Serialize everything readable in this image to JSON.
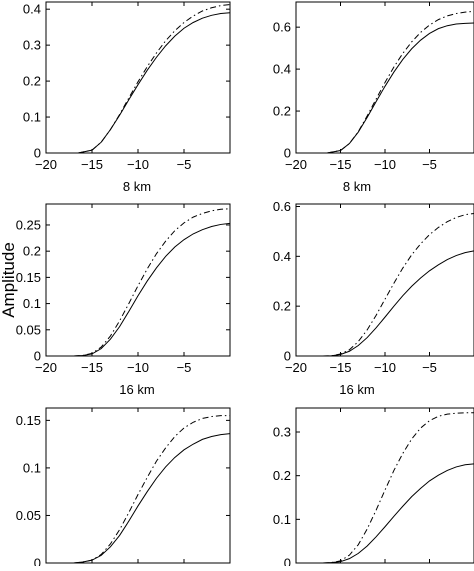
{
  "figure": {
    "ylabel": "Amplitude"
  },
  "chart_data": [
    {
      "type": "line",
      "panel": "top-left",
      "title": "",
      "xlabel": "8 km",
      "ylabel": "",
      "xlim": [
        -20,
        0
      ],
      "ylim": [
        0,
        0.42
      ],
      "xticks": [
        -20,
        -15,
        -10,
        -5
      ],
      "yticks": [
        0,
        0.1,
        0.2,
        0.3,
        0.4
      ],
      "xtick_labels": [
        "−20",
        "−15",
        "−10",
        "−5"
      ],
      "ytick_labels": [
        "0",
        "0.1",
        "0.2",
        "0.3",
        "0.4"
      ],
      "grid": false,
      "series": [
        {
          "style": "solid",
          "x": [
            -16.5,
            -15,
            -14,
            -13,
            -12,
            -11,
            -10,
            -9,
            -8,
            -7,
            -6,
            -5,
            -4,
            -3,
            -2,
            -1,
            0
          ],
          "values": [
            0,
            0.008,
            0.03,
            0.065,
            0.105,
            0.148,
            0.19,
            0.23,
            0.266,
            0.298,
            0.325,
            0.347,
            0.363,
            0.375,
            0.383,
            0.388,
            0.39
          ]
        },
        {
          "style": "dash-dot",
          "x": [
            -16.5,
            -15,
            -14,
            -13,
            -12,
            -11,
            -10,
            -9,
            -8,
            -7,
            -6,
            -5,
            -4,
            -3,
            -2,
            -1,
            0
          ],
          "values": [
            0,
            0.008,
            0.03,
            0.065,
            0.107,
            0.153,
            0.198,
            0.24,
            0.278,
            0.312,
            0.34,
            0.363,
            0.381,
            0.395,
            0.404,
            0.41,
            0.413
          ]
        }
      ]
    },
    {
      "type": "line",
      "panel": "top-right",
      "title": "",
      "xlabel": "8 km",
      "ylabel": "",
      "xlim": [
        -20,
        0
      ],
      "ylim": [
        0,
        0.72
      ],
      "xticks": [
        -20,
        -15,
        -10,
        -5
      ],
      "yticks": [
        0,
        0.2,
        0.4,
        0.6
      ],
      "xtick_labels": [
        "−20",
        "−15",
        "−10",
        "−5"
      ],
      "ytick_labels": [
        "0",
        "0.2",
        "0.4",
        "0.6"
      ],
      "grid": false,
      "series": [
        {
          "style": "solid",
          "x": [
            -16.5,
            -15,
            -14,
            -13,
            -12,
            -11,
            -10,
            -9,
            -8,
            -7,
            -6,
            -5,
            -4,
            -3,
            -2,
            -1,
            0
          ],
          "values": [
            0,
            0.012,
            0.045,
            0.1,
            0.17,
            0.245,
            0.318,
            0.386,
            0.446,
            0.497,
            0.538,
            0.57,
            0.593,
            0.607,
            0.615,
            0.618,
            0.62
          ]
        },
        {
          "style": "dash-dot",
          "x": [
            -16.5,
            -15,
            -14,
            -13,
            -12,
            -11,
            -10,
            -9,
            -8,
            -7,
            -6,
            -5,
            -4,
            -3,
            -2,
            -1,
            0
          ],
          "values": [
            0,
            0.012,
            0.045,
            0.102,
            0.177,
            0.257,
            0.336,
            0.41,
            0.475,
            0.53,
            0.575,
            0.61,
            0.636,
            0.654,
            0.665,
            0.672,
            0.675
          ]
        }
      ]
    },
    {
      "type": "line",
      "panel": "middle-left",
      "title": "",
      "xlabel": "16 km",
      "ylabel": "",
      "xlim": [
        -20,
        0
      ],
      "ylim": [
        0,
        0.29
      ],
      "xticks": [
        -20,
        -15,
        -10,
        -5
      ],
      "yticks": [
        0,
        0.05,
        0.1,
        0.15,
        0.2,
        0.25
      ],
      "xtick_labels": [
        "−20",
        "−15",
        "−10",
        "−5"
      ],
      "ytick_labels": [
        "0",
        "0.05",
        "0.1",
        "0.15",
        "0.2",
        "0.25"
      ],
      "grid": false,
      "series": [
        {
          "style": "solid",
          "x": [
            -17,
            -16,
            -15,
            -14,
            -13,
            -12,
            -11,
            -10,
            -9,
            -8,
            -7,
            -6,
            -5,
            -4,
            -3,
            -2,
            -1,
            0
          ],
          "values": [
            0,
            0.001,
            0.004,
            0.014,
            0.032,
            0.056,
            0.085,
            0.115,
            0.143,
            0.168,
            0.19,
            0.208,
            0.222,
            0.233,
            0.241,
            0.247,
            0.251,
            0.253
          ]
        },
        {
          "style": "dash-dot",
          "x": [
            -17,
            -16,
            -15,
            -14,
            -13,
            -12,
            -11,
            -10,
            -9,
            -8,
            -7,
            -6,
            -5,
            -4,
            -3,
            -2,
            -1,
            0
          ],
          "values": [
            0,
            0.001,
            0.005,
            0.017,
            0.038,
            0.067,
            0.1,
            0.134,
            0.166,
            0.195,
            0.219,
            0.239,
            0.254,
            0.265,
            0.272,
            0.277,
            0.28,
            0.281
          ]
        }
      ]
    },
    {
      "type": "line",
      "panel": "middle-right",
      "title": "",
      "xlabel": "16 km",
      "ylabel": "",
      "xlim": [
        -20,
        0
      ],
      "ylim": [
        0,
        0.61
      ],
      "xticks": [
        -20,
        -15,
        -10,
        -5
      ],
      "yticks": [
        0,
        0.2,
        0.4,
        0.6
      ],
      "xtick_labels": [
        "−20",
        "−15",
        "−10",
        "−5"
      ],
      "ytick_labels": [
        "0",
        "0.2",
        "0.4",
        "0.6"
      ],
      "grid": false,
      "series": [
        {
          "style": "solid",
          "x": [
            -17,
            -16,
            -15,
            -14,
            -13,
            -12,
            -11,
            -10,
            -9,
            -8,
            -7,
            -6,
            -5,
            -4,
            -3,
            -2,
            -1,
            0
          ],
          "values": [
            0,
            0.001,
            0.006,
            0.019,
            0.042,
            0.074,
            0.113,
            0.156,
            0.2,
            0.242,
            0.28,
            0.313,
            0.342,
            0.366,
            0.387,
            0.403,
            0.415,
            0.422
          ]
        },
        {
          "style": "dash-dot",
          "x": [
            -17,
            -16,
            -15,
            -14,
            -13,
            -12,
            -11,
            -10,
            -9,
            -8,
            -7,
            -6,
            -5,
            -4,
            -3,
            -2,
            -1,
            0
          ],
          "values": [
            0,
            0.001,
            0.008,
            0.025,
            0.058,
            0.105,
            0.163,
            0.228,
            0.292,
            0.353,
            0.406,
            0.45,
            0.487,
            0.516,
            0.539,
            0.556,
            0.567,
            0.572
          ]
        }
      ]
    },
    {
      "type": "line",
      "panel": "bottom-left",
      "title": "",
      "xlabel": "",
      "ylabel": "",
      "xlim": [
        -20,
        0
      ],
      "ylim": [
        0,
        0.163
      ],
      "xticks": [
        -20,
        -15,
        -10,
        -5
      ],
      "yticks": [
        0,
        0.05,
        0.1,
        0.15
      ],
      "xtick_labels": [],
      "ytick_labels": [
        "0",
        "0.05",
        "0.1",
        "0.15"
      ],
      "grid": false,
      "series": [
        {
          "style": "solid",
          "x": [
            -17,
            -16,
            -15,
            -14,
            -13,
            -12,
            -11,
            -10,
            -9,
            -8,
            -7,
            -6,
            -5,
            -4,
            -3,
            -2,
            -1,
            0
          ],
          "values": [
            0,
            0.001,
            0.003,
            0.008,
            0.017,
            0.029,
            0.044,
            0.06,
            0.075,
            0.089,
            0.101,
            0.111,
            0.119,
            0.125,
            0.13,
            0.133,
            0.135,
            0.136
          ]
        },
        {
          "style": "dash-dot",
          "x": [
            -17,
            -16,
            -15,
            -14,
            -13,
            -12,
            -11,
            -10,
            -9,
            -8,
            -7,
            -6,
            -5,
            -4,
            -3,
            -2,
            -1,
            0
          ],
          "values": [
            0,
            0.001,
            0.003,
            0.009,
            0.02,
            0.035,
            0.053,
            0.072,
            0.09,
            0.107,
            0.121,
            0.133,
            0.142,
            0.148,
            0.152,
            0.154,
            0.155,
            0.155
          ]
        }
      ]
    },
    {
      "type": "line",
      "panel": "bottom-right",
      "title": "",
      "xlabel": "",
      "ylabel": "",
      "xlim": [
        -20,
        0
      ],
      "ylim": [
        0,
        0.355
      ],
      "xticks": [
        -20,
        -15,
        -10,
        -5
      ],
      "yticks": [
        0,
        0.1,
        0.2,
        0.3
      ],
      "xtick_labels": [],
      "ytick_labels": [
        "0",
        "0.1",
        "0.2",
        "0.3"
      ],
      "grid": false,
      "series": [
        {
          "style": "solid",
          "x": [
            -17,
            -16,
            -15,
            -14,
            -13,
            -12,
            -11,
            -10,
            -9,
            -8,
            -7,
            -6,
            -5,
            -4,
            -3,
            -2,
            -1,
            0
          ],
          "values": [
            0,
            0.001,
            0.003,
            0.01,
            0.022,
            0.039,
            0.06,
            0.083,
            0.107,
            0.13,
            0.152,
            0.171,
            0.188,
            0.201,
            0.212,
            0.22,
            0.225,
            0.227
          ]
        },
        {
          "style": "dash-dot",
          "x": [
            -17,
            -16,
            -15,
            -14,
            -13,
            -12,
            -11,
            -10,
            -9,
            -8,
            -7,
            -6,
            -5,
            -4,
            -3,
            -2,
            -1,
            0
          ],
          "values": [
            0,
            0.001,
            0.005,
            0.018,
            0.042,
            0.078,
            0.121,
            0.167,
            0.212,
            0.251,
            0.284,
            0.309,
            0.326,
            0.336,
            0.341,
            0.343,
            0.344,
            0.344
          ]
        }
      ]
    }
  ]
}
